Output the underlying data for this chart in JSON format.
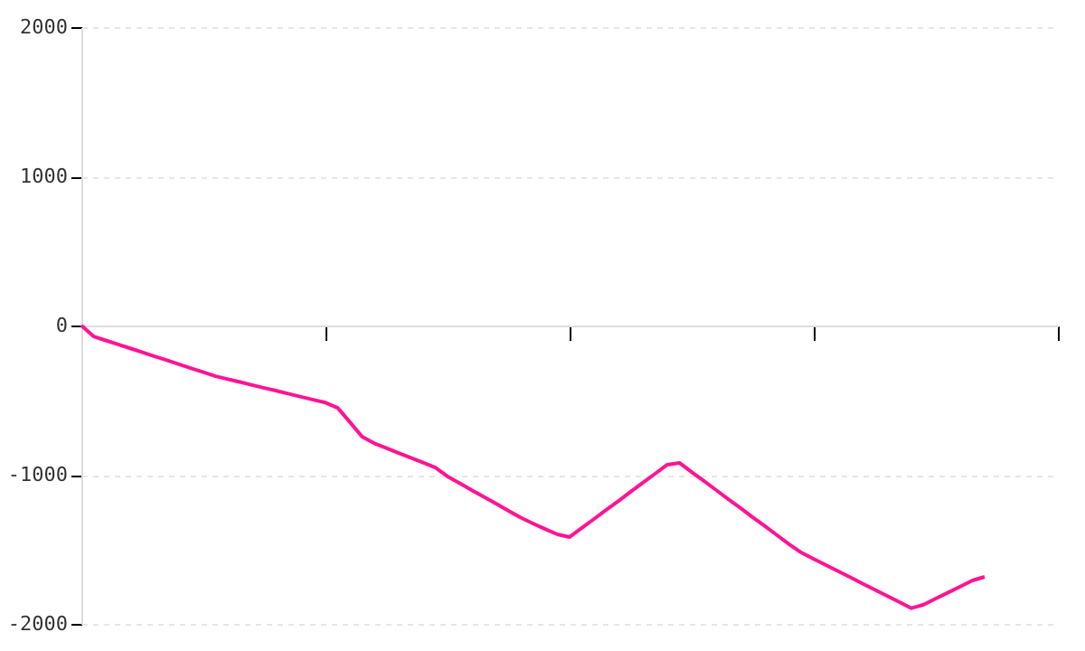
{
  "chart_data": {
    "type": "line",
    "categories": [
      null,
      null,
      null,
      null,
      null,
      null,
      null,
      null,
      null,
      null,
      null,
      null,
      null,
      null,
      null,
      null,
      null,
      null,
      null,
      null,
      null,
      null,
      null,
      null,
      null,
      null,
      null,
      null,
      null,
      null,
      null,
      null,
      null,
      null,
      null,
      null,
      null,
      null,
      null,
      null,
      null,
      null,
      null,
      null,
      null,
      null,
      null,
      null,
      null,
      null,
      null,
      null,
      null,
      null,
      null,
      null,
      null,
      null,
      null,
      null,
      null,
      null,
      null,
      null,
      null,
      null,
      null,
      null,
      null,
      null,
      null,
      null,
      null,
      null,
      null
    ],
    "series": [
      {
        "color": "#ff1493",
        "values": [
          0,
          -73,
          -100,
          -126,
          -153,
          -180,
          -207,
          -233,
          -260,
          -287,
          -313,
          -340,
          -360,
          -379,
          -399,
          -419,
          -438,
          -458,
          -478,
          -498,
          -517,
          -552,
          -648,
          -745,
          -790,
          -822,
          -855,
          -887,
          -919,
          -952,
          -1012,
          -1058,
          -1104,
          -1150,
          -1196,
          -1242,
          -1288,
          -1327,
          -1364,
          -1400,
          -1418,
          -1357,
          -1297,
          -1236,
          -1176,
          -1115,
          -1054,
          -994,
          -933,
          -921,
          -982,
          -1042,
          -1103,
          -1164,
          -1224,
          -1285,
          -1345,
          -1406,
          -1467,
          -1523,
          -1565,
          -1606,
          -1647,
          -1688,
          -1730,
          -1771,
          -1812,
          -1853,
          -1895,
          -1871,
          -1830,
          -1790,
          -1750,
          -1709,
          -1685
        ]
      }
    ],
    "ylim": [
      -2000,
      2000
    ],
    "yticks": [
      -2000,
      -1000,
      0,
      1000,
      2000
    ],
    "grid": "y",
    "tick_labels": "y",
    "marker": "none",
    "line_style": "solid"
  }
}
